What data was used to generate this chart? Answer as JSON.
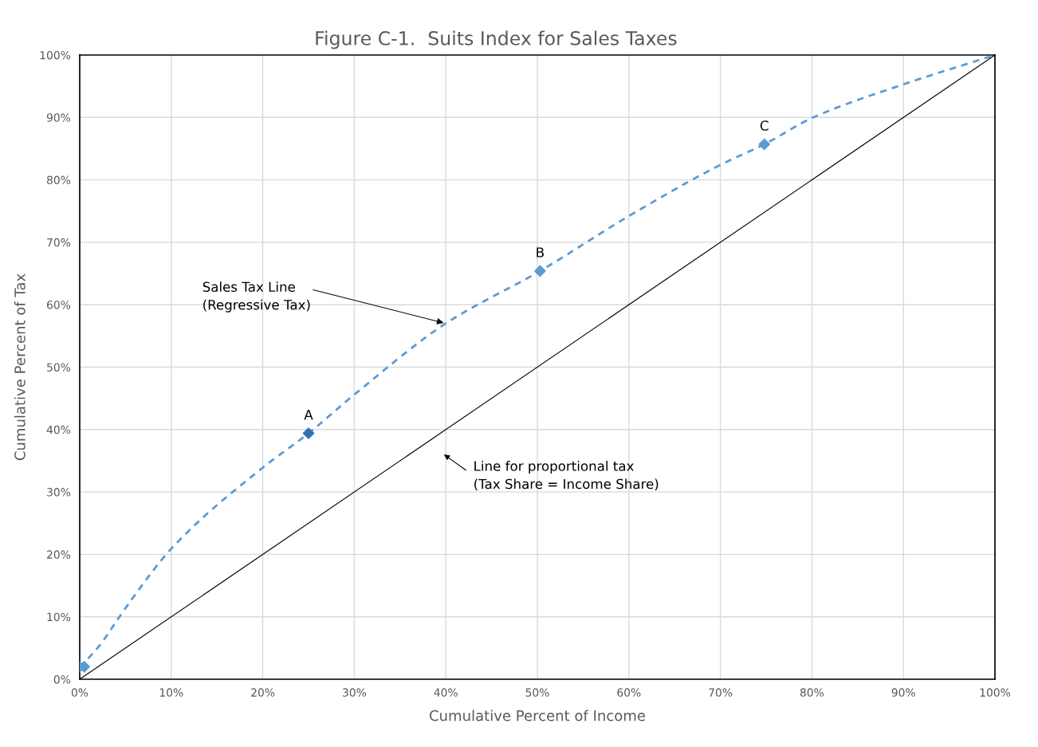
{
  "chart_data": {
    "type": "line",
    "title": "Figure C-1.  Suits Index for Sales Taxes",
    "xlabel": "Cumulative Percent of Income",
    "ylabel": "Cumulative Percent of Tax",
    "series": [
      {
        "color": "#5b9bd5",
        "line_style": "dashed",
        "marker": "none",
        "x": [
          0,
          2,
          5,
          10,
          20,
          25,
          30,
          40,
          50.3,
          60,
          70,
          74.8,
          80,
          90,
          100
        ],
        "values": [
          1.9,
          5.1,
          11.4,
          20.9,
          33.9,
          39.4,
          45.6,
          57,
          65.4,
          74.2,
          82.4,
          85.7,
          89.9,
          95.3,
          100
        ]
      },
      {
        "type": "scatter",
        "color": "#5b9bd5",
        "colors": [
          "#5b9bd5",
          "#5b9bd5",
          "#2e75b6",
          "#5b9bd5",
          "#5b9bd5"
        ],
        "marker": "diamond",
        "x": [
          0,
          0.5,
          25,
          50.3,
          74.8
        ],
        "values": [
          2,
          2,
          39.4,
          65.4,
          85.7
        ]
      },
      {
        "type": "line",
        "color": "#000000",
        "line_style": "solid",
        "marker": "none",
        "x": [
          0,
          100
        ],
        "values": [
          0,
          100
        ]
      }
    ],
    "annotations": [
      {
        "text": "A",
        "x": 25,
        "y": 39.4
      },
      {
        "text": "B",
        "x": 50.3,
        "y": 65.4
      },
      {
        "text": "C",
        "x": 74.8,
        "y": 85.7
      },
      {
        "text": "Sales Tax Line\n(Regressive Tax)",
        "x": 40,
        "y": 57
      },
      "Line for proportional tax\n(Tax Share = Income Share)"
    ],
    "xlim": [
      0,
      100
    ],
    "ylim": [
      0,
      100
    ],
    "xticks": [
      {
        "value": 0,
        "label": "0%"
      },
      {
        "value": 10,
        "label": "10%"
      },
      {
        "value": 20,
        "label": "20%"
      },
      {
        "value": 30,
        "label": "30%"
      },
      {
        "value": 40,
        "label": "40%"
      },
      {
        "value": 50,
        "label": "50%"
      },
      {
        "value": 60,
        "label": "60%"
      },
      {
        "value": 70,
        "label": "70%"
      },
      {
        "value": 80,
        "label": "80%"
      },
      {
        "value": 90,
        "label": "90%"
      },
      {
        "value": 100,
        "label": "100%"
      }
    ],
    "yticks": [
      {
        "value": 0,
        "label": "0%"
      },
      {
        "value": 10,
        "label": "10%"
      },
      {
        "value": 20,
        "label": "20%"
      },
      {
        "value": 30,
        "label": "30%"
      },
      {
        "value": 40,
        "label": "40%"
      },
      {
        "value": 50,
        "label": "50%"
      },
      {
        "value": 60,
        "label": "60%"
      },
      {
        "value": 70,
        "label": "70%"
      },
      {
        "value": 80,
        "label": "80%"
      },
      {
        "value": 90,
        "label": "90%"
      },
      {
        "value": 100,
        "label": "100%"
      }
    ],
    "grid": true
  }
}
